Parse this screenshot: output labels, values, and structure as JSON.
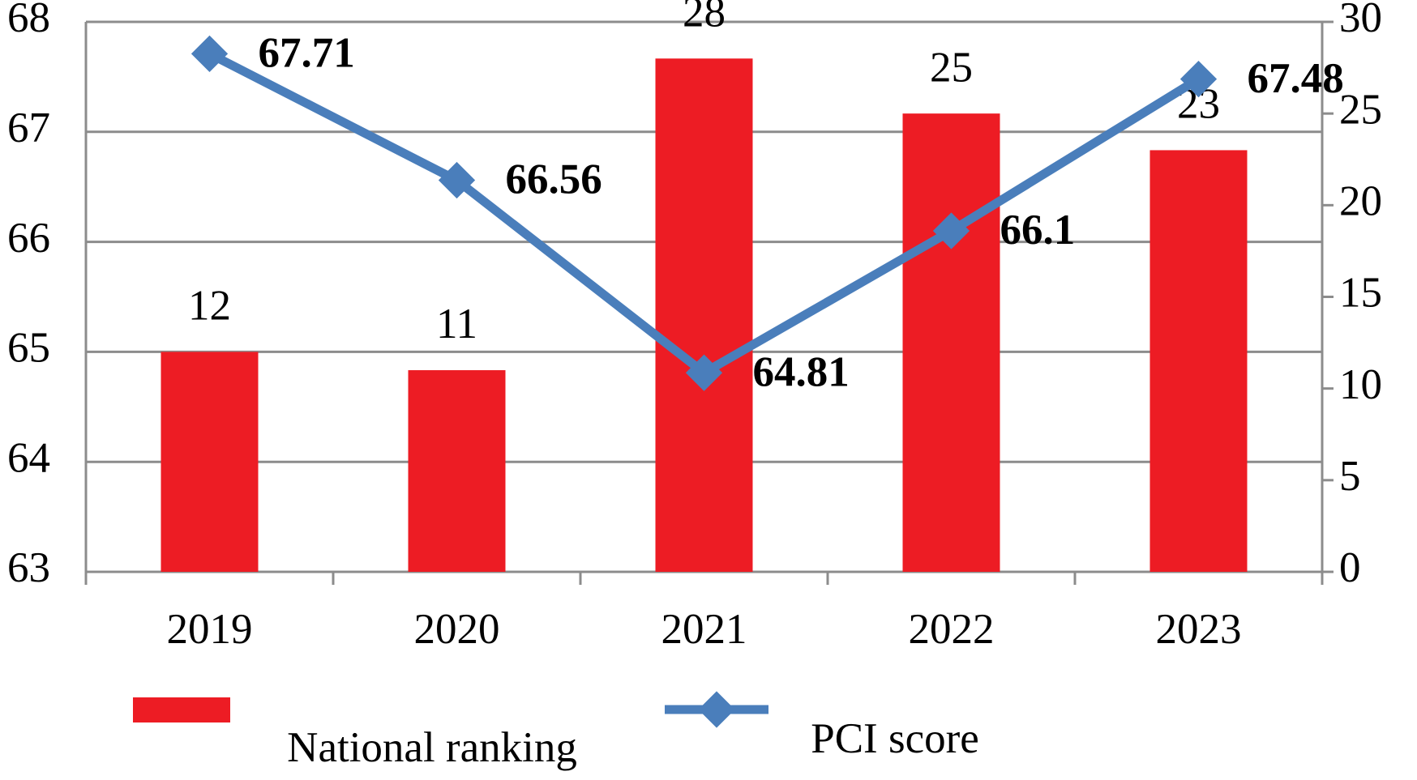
{
  "chart_data": {
    "type": "bar-line",
    "categories": [
      "2019",
      "2020",
      "2021",
      "2022",
      "2023"
    ],
    "series": [
      {
        "name": "National ranking",
        "type": "bar",
        "axis": "y2",
        "color": "#ed1c24",
        "values": [
          12,
          11,
          28,
          25,
          23
        ]
      },
      {
        "name": "PCI score",
        "type": "line",
        "color": "#4a7ebb",
        "values": [
          67.71,
          66.56,
          64.81,
          66.1,
          67.48
        ]
      }
    ],
    "ylim": [
      63,
      68
    ],
    "yticks": [
      63,
      64,
      65,
      66,
      67,
      68
    ],
    "y2lim": [
      0,
      30
    ],
    "y2ticks": [
      0,
      5,
      10,
      15,
      20,
      25,
      30
    ],
    "grid": true,
    "legend": "bottom"
  }
}
